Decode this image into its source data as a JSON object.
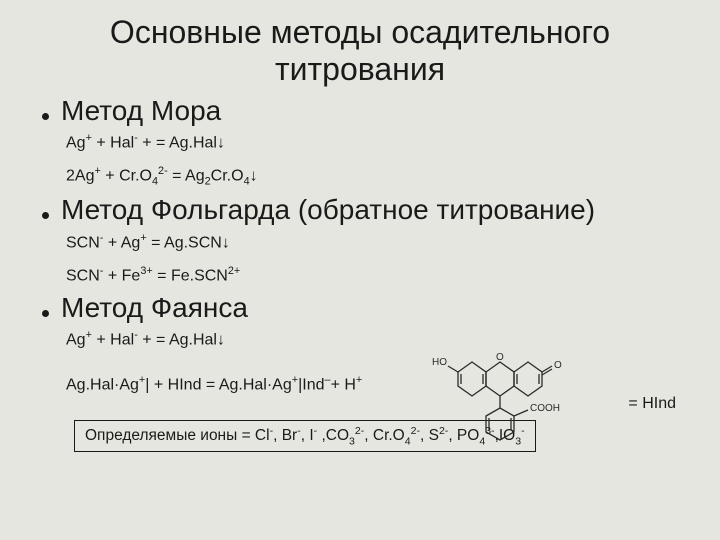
{
  "title_line1": "Основные методы осадительного",
  "title_line2": "титрования",
  "method1": {
    "name": "Метод Мора",
    "eq1_html": "Ag<sup>+</sup> + Hal<sup>-</sup> + = Ag.Hal<span class='arrowdn'>↓</span>",
    "eq2_html": "2Ag<sup>+</sup> + Cr.O<sub>4</sub><sup>2-</sup> = Ag<sub>2</sub>Cr.O<sub>4</sub><span class='arrowdn'>↓</span>"
  },
  "method2": {
    "name": "Метод Фольгарда (обратное титрование)",
    "eq1_html": "SCN<sup>-</sup> + Ag<sup>+</sup> = Ag.SCN<span class='arrowdn'>↓</span>",
    "eq2_html": "SCN<sup>-</sup> + Fe<sup>3+</sup> = Fe.SCN<sup>2+</sup>"
  },
  "method3": {
    "name": "Метод Фаянса",
    "eq1_html": "Ag<sup>+</sup> + Hal<sup>-</sup> + = Ag.Hal<span class='arrowdn'>↓</span>",
    "eq2_html": "Ag.Hal·Ag<sup>+</sup>| + HInd = Ag.Hal·Ag<sup>+</sup>|Ind<sup>–</sup>+ H<sup>+</sup>"
  },
  "hind_label": "= HInd",
  "ion_box_html": "Определяемые ионы = Cl<sup>-</sup>, Br<sup>-</sup>, I<sup>-</sup> ,CO<sub>3</sub><sup>2-</sup>, Cr.O<sub>4</sub><sup>2-</sup>, S<sup>2-</sup>, PO<sub>4</sub><sup>3-</sup>,IO<sub>3</sub><sup>-</sup>",
  "structure": {
    "ho_label": "HO",
    "o_label": "O",
    "cooh_label": "COOH"
  },
  "colors": {
    "bg": "#e6e6e0",
    "text": "#1a1a1a",
    "structure_stroke": "#2a2a2a"
  }
}
